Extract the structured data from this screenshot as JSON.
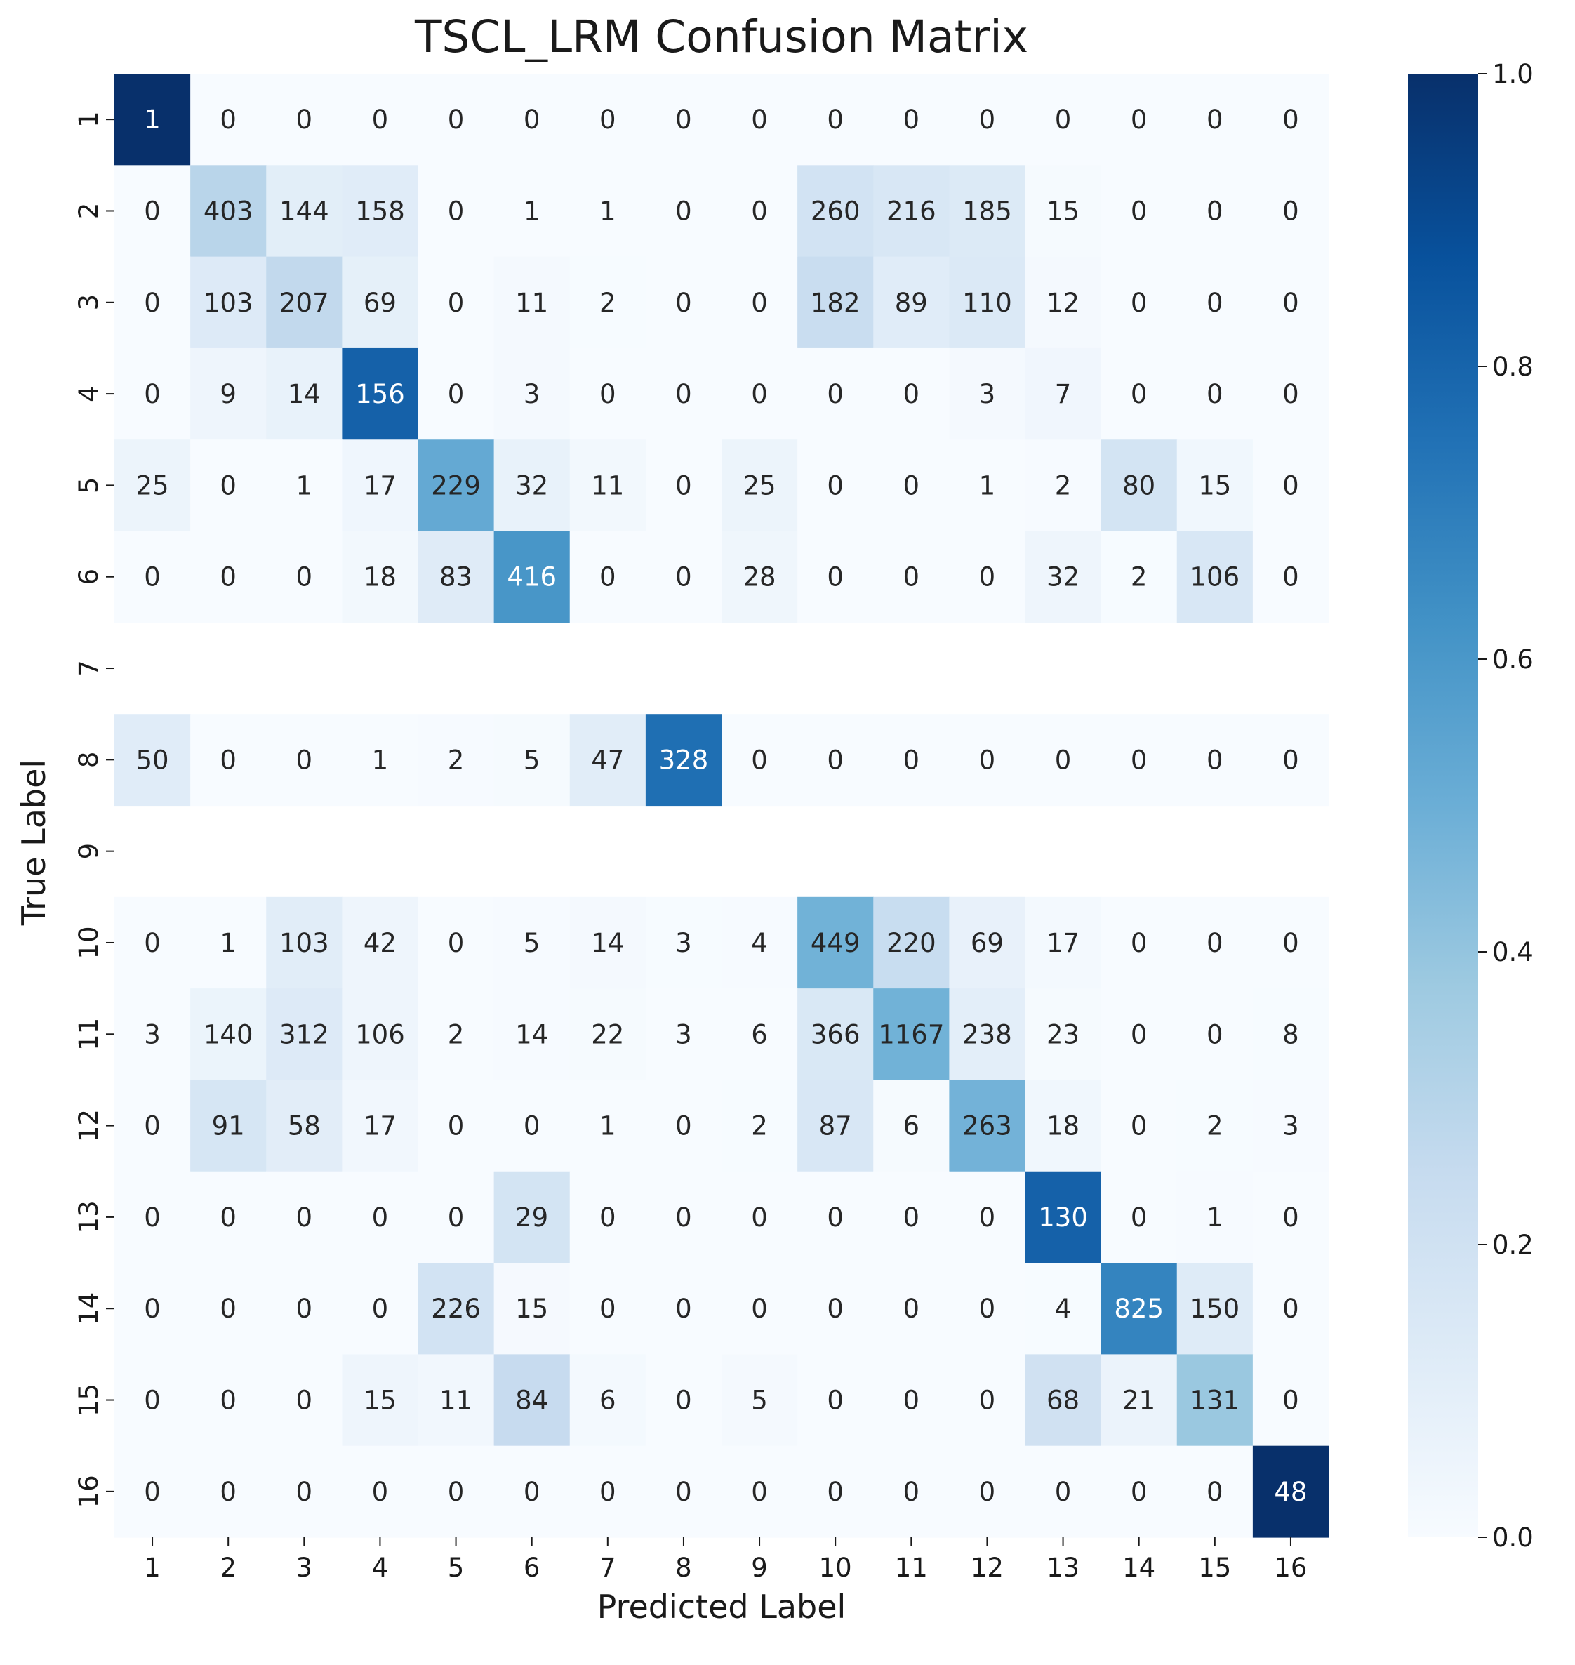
{
  "chart_data": {
    "type": "heatmap",
    "title": "TSCL_LRM Confusion Matrix",
    "xlabel": "Predicted Label",
    "ylabel": "True Label",
    "x_categories": [
      "1",
      "2",
      "3",
      "4",
      "5",
      "6",
      "7",
      "8",
      "9",
      "10",
      "11",
      "12",
      "13",
      "14",
      "15",
      "16"
    ],
    "y_categories": [
      "1",
      "2",
      "3",
      "4",
      "5",
      "6",
      "7",
      "8",
      "9",
      "10",
      "11",
      "12",
      "13",
      "14",
      "15",
      "16"
    ],
    "colormap": "Blues",
    "color_scale": "row-normalized",
    "colorbar": {
      "range": [
        0.0,
        1.0
      ],
      "ticks": [
        "0.0",
        "0.2",
        "0.4",
        "0.6",
        "0.8",
        "1.0"
      ]
    },
    "values": [
      [
        1,
        0,
        0,
        0,
        0,
        0,
        0,
        0,
        0,
        0,
        0,
        0,
        0,
        0,
        0,
        0
      ],
      [
        0,
        403,
        144,
        158,
        0,
        1,
        1,
        0,
        0,
        260,
        216,
        185,
        15,
        0,
        0,
        0
      ],
      [
        0,
        103,
        207,
        69,
        0,
        11,
        2,
        0,
        0,
        182,
        89,
        110,
        12,
        0,
        0,
        0
      ],
      [
        0,
        9,
        14,
        156,
        0,
        3,
        0,
        0,
        0,
        0,
        0,
        3,
        7,
        0,
        0,
        0
      ],
      [
        25,
        0,
        1,
        17,
        229,
        32,
        11,
        0,
        25,
        0,
        0,
        1,
        2,
        80,
        15,
        0
      ],
      [
        0,
        0,
        0,
        18,
        83,
        416,
        0,
        0,
        28,
        0,
        0,
        0,
        32,
        2,
        106,
        0
      ],
      null,
      [
        50,
        0,
        0,
        1,
        2,
        5,
        47,
        328,
        0,
        0,
        0,
        0,
        0,
        0,
        0,
        0
      ],
      null,
      [
        0,
        1,
        103,
        42,
        0,
        5,
        14,
        3,
        4,
        449,
        220,
        69,
        17,
        0,
        0,
        0
      ],
      [
        3,
        140,
        312,
        106,
        2,
        14,
        22,
        3,
        6,
        366,
        1167,
        238,
        23,
        0,
        0,
        8
      ],
      [
        0,
        91,
        58,
        17,
        0,
        0,
        1,
        0,
        2,
        87,
        6,
        263,
        18,
        0,
        2,
        3
      ],
      [
        0,
        0,
        0,
        0,
        0,
        29,
        0,
        0,
        0,
        0,
        0,
        0,
        130,
        0,
        1,
        0
      ],
      [
        0,
        0,
        0,
        0,
        226,
        15,
        0,
        0,
        0,
        0,
        0,
        0,
        4,
        825,
        150,
        0
      ],
      [
        0,
        0,
        0,
        15,
        11,
        84,
        6,
        0,
        5,
        0,
        0,
        0,
        68,
        21,
        131,
        0
      ],
      [
        0,
        0,
        0,
        0,
        0,
        0,
        0,
        0,
        0,
        0,
        0,
        0,
        0,
        0,
        0,
        48
      ]
    ]
  }
}
